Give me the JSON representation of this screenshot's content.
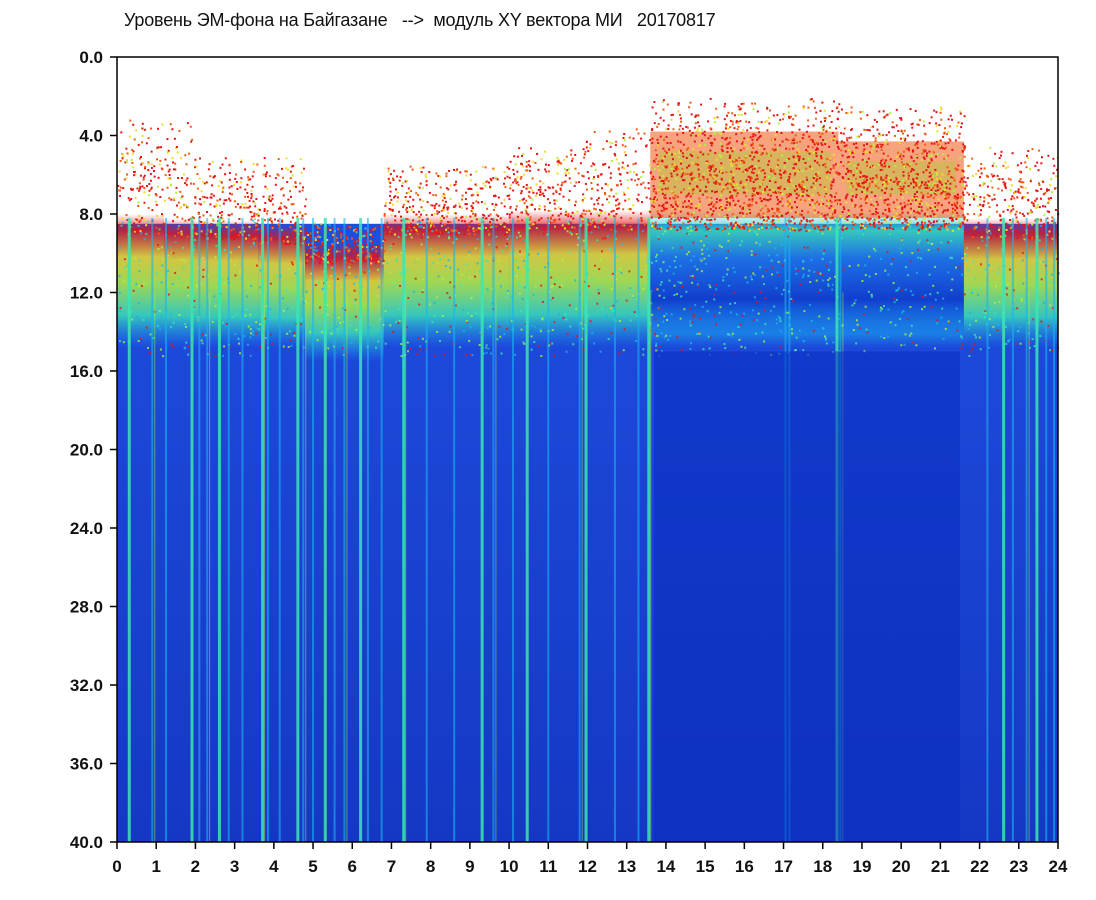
{
  "title": "Уровень ЭМ-фона на Байгазане   -->  модуль XY вектора МИ   20170817",
  "chart_data": {
    "type": "heatmap",
    "title": "Уровень ЭМ-фона на Байгазане   -->  модуль XY вектора МИ   20170817",
    "xlabel": "",
    "ylabel": "",
    "x_ticks": [
      "0",
      "1",
      "2",
      "3",
      "4",
      "5",
      "6",
      "7",
      "8",
      "9",
      "10",
      "11",
      "12",
      "13",
      "14",
      "15",
      "16",
      "17",
      "18",
      "19",
      "20",
      "21",
      "22",
      "23",
      "24"
    ],
    "y_ticks": [
      "0.0",
      "4.0",
      "8.0",
      "12.0",
      "16.0",
      "20.0",
      "24.0",
      "28.0",
      "32.0",
      "36.0",
      "40.0"
    ],
    "xlim": [
      0,
      24
    ],
    "ylim": [
      0,
      40
    ],
    "y_inverted": true,
    "grid": false,
    "legend": "none",
    "colormap": [
      "#0a1fb0",
      "#1450e6",
      "#19b4f0",
      "#3ce6b4",
      "#b4f03c",
      "#f0dc28",
      "#f05a14",
      "#e61414"
    ],
    "background_color": "#1a3fd6",
    "note_colors": {
      "frame": "#000000",
      "top_empty": "#ffffff"
    }
  }
}
